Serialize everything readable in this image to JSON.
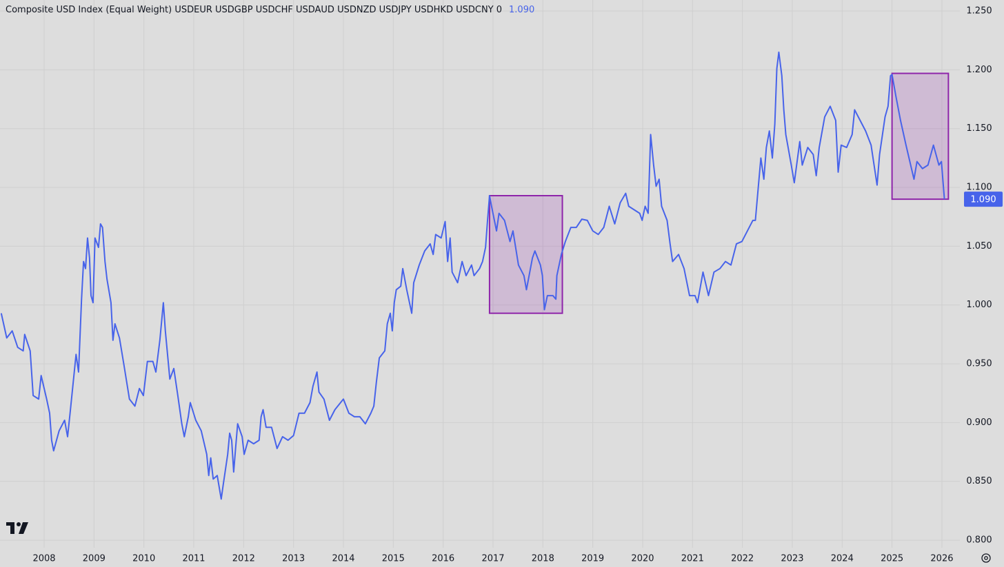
{
  "chart_data": {
    "type": "line",
    "title": "Composite USD Index (Equal Weight) USDEUR USDGBP USDCHF USDAUD USDNZD USDJPY USDHKD USDCNY 0",
    "color": "#4763ea",
    "grid": true,
    "xlim": [
      2007.115,
      2026.36
    ],
    "ylim": [
      0.7936,
      1.2594
    ],
    "xticks": [
      2008,
      2009,
      2010,
      2011,
      2012,
      2013,
      2014,
      2015,
      2016,
      2017,
      2018,
      2019,
      2020,
      2021,
      2022,
      2023,
      2024,
      2025,
      2026
    ],
    "yticks": [
      {
        "value": 0.8,
        "label": "0.800"
      },
      {
        "value": 0.85,
        "label": "0.850"
      },
      {
        "value": 0.9,
        "label": "0.900"
      },
      {
        "value": 0.95,
        "label": "0.950"
      },
      {
        "value": 1.0,
        "label": "1.000"
      },
      {
        "value": 1.05,
        "label": "1.050"
      },
      {
        "value": 1.1,
        "label": "1.100"
      },
      {
        "value": 1.15,
        "label": "1.150"
      },
      {
        "value": 1.2,
        "label": "1.200"
      },
      {
        "value": 1.25,
        "label": "1.250"
      }
    ],
    "current_value": {
      "value": 1.09,
      "label": "1.090"
    },
    "highlight_color": "#8e24aa",
    "highlights": [
      {
        "xlim": [
          2016.93,
          2018.39
        ],
        "ylim": [
          0.993,
          1.093
        ]
      },
      {
        "xlim": [
          2025.0,
          2026.13
        ],
        "ylim": [
          1.09,
          1.197
        ]
      }
    ],
    "x": [
      2007.14,
      2007.25,
      2007.36,
      2007.47,
      2007.58,
      2007.61,
      2007.72,
      2007.78,
      2007.89,
      2007.94,
      2008.05,
      2008.11,
      2008.15,
      2008.19,
      2008.3,
      2008.41,
      2008.47,
      2008.52,
      2008.64,
      2008.69,
      2008.75,
      2008.79,
      2008.83,
      2008.87,
      2008.91,
      2008.94,
      2008.98,
      2009.02,
      2009.09,
      2009.13,
      2009.17,
      2009.22,
      2009.26,
      2009.34,
      2009.38,
      2009.42,
      2009.51,
      2009.6,
      2009.71,
      2009.82,
      2009.91,
      2009.99,
      2010.07,
      2010.18,
      2010.24,
      2010.32,
      2010.39,
      2010.43,
      2010.52,
      2010.6,
      2010.68,
      2010.76,
      2010.81,
      2010.89,
      2010.93,
      2011.04,
      2011.15,
      2011.26,
      2011.3,
      2011.34,
      2011.39,
      2011.47,
      2011.55,
      2011.59,
      2011.68,
      2011.72,
      2011.76,
      2011.8,
      2011.84,
      2011.88,
      2011.97,
      2012.01,
      2012.09,
      2012.2,
      2012.31,
      2012.35,
      2012.39,
      2012.45,
      2012.56,
      2012.67,
      2012.78,
      2012.89,
      2013.0,
      2013.11,
      2013.22,
      2013.33,
      2013.39,
      2013.47,
      2013.51,
      2013.61,
      2013.72,
      2013.83,
      2014.0,
      2014.11,
      2014.22,
      2014.33,
      2014.44,
      2014.55,
      2014.61,
      2014.66,
      2014.72,
      2014.83,
      2014.88,
      2014.94,
      2014.98,
      2015.02,
      2015.06,
      2015.15,
      2015.19,
      2015.27,
      2015.37,
      2015.41,
      2015.52,
      2015.63,
      2015.74,
      2015.8,
      2015.85,
      2015.96,
      2016.04,
      2016.09,
      2016.14,
      2016.18,
      2016.29,
      2016.38,
      2016.46,
      2016.57,
      2016.62,
      2016.73,
      2016.79,
      2016.85,
      2016.89,
      2016.93,
      2016.97,
      2017.07,
      2017.12,
      2017.23,
      2017.34,
      2017.4,
      2017.51,
      2017.62,
      2017.67,
      2017.79,
      2017.84,
      2017.95,
      2017.99,
      2018.03,
      2018.09,
      2018.2,
      2018.26,
      2018.28,
      2018.37,
      2018.45,
      2018.56,
      2018.67,
      2018.78,
      2018.89,
      2019.0,
      2019.11,
      2019.22,
      2019.33,
      2019.44,
      2019.55,
      2019.66,
      2019.72,
      2019.83,
      2019.94,
      2019.99,
      2020.05,
      2020.11,
      2020.16,
      2020.22,
      2020.27,
      2020.33,
      2020.38,
      2020.49,
      2020.55,
      2020.6,
      2020.72,
      2020.83,
      2020.94,
      2021.05,
      2021.1,
      2021.21,
      2021.32,
      2021.43,
      2021.55,
      2021.66,
      2021.77,
      2021.88,
      2021.99,
      2022.1,
      2022.21,
      2022.26,
      2022.32,
      2022.37,
      2022.43,
      2022.48,
      2022.54,
      2022.6,
      2022.65,
      2022.69,
      2022.73,
      2022.79,
      2022.83,
      2022.87,
      2022.98,
      2023.04,
      2023.15,
      2023.2,
      2023.31,
      2023.42,
      2023.48,
      2023.54,
      2023.65,
      2023.76,
      2023.87,
      2023.92,
      2023.98,
      2024.09,
      2024.2,
      2024.25,
      2024.36,
      2024.47,
      2024.58,
      2024.64,
      2024.7,
      2024.75,
      2024.86,
      2024.92,
      2024.97,
      2025.0,
      2025.08,
      2025.17,
      2025.28,
      2025.39,
      2025.44,
      2025.5,
      2025.61,
      2025.72,
      2025.83,
      2025.94,
      2025.99,
      2026.05
    ],
    "values": [
      0.993,
      0.972,
      0.978,
      0.964,
      0.961,
      0.975,
      0.961,
      0.923,
      0.92,
      0.94,
      0.92,
      0.908,
      0.885,
      0.876,
      0.893,
      0.902,
      0.888,
      0.908,
      0.958,
      0.943,
      1.005,
      1.037,
      1.031,
      1.057,
      1.04,
      1.008,
      1.002,
      1.057,
      1.049,
      1.069,
      1.066,
      1.037,
      1.022,
      1.002,
      0.97,
      0.984,
      0.972,
      0.949,
      0.92,
      0.914,
      0.929,
      0.923,
      0.952,
      0.952,
      0.943,
      0.97,
      1.002,
      0.978,
      0.937,
      0.946,
      0.923,
      0.899,
      0.888,
      0.905,
      0.917,
      0.902,
      0.893,
      0.873,
      0.855,
      0.87,
      0.852,
      0.855,
      0.835,
      0.847,
      0.873,
      0.891,
      0.885,
      0.858,
      0.879,
      0.899,
      0.888,
      0.873,
      0.885,
      0.882,
      0.885,
      0.905,
      0.911,
      0.896,
      0.896,
      0.878,
      0.888,
      0.885,
      0.889,
      0.908,
      0.908,
      0.917,
      0.931,
      0.943,
      0.926,
      0.92,
      0.902,
      0.911,
      0.92,
      0.908,
      0.905,
      0.905,
      0.899,
      0.908,
      0.914,
      0.934,
      0.955,
      0.961,
      0.984,
      0.993,
      0.978,
      1.002,
      1.013,
      1.016,
      1.031,
      1.013,
      0.993,
      1.019,
      1.034,
      1.046,
      1.052,
      1.043,
      1.06,
      1.057,
      1.071,
      1.037,
      1.057,
      1.028,
      1.019,
      1.037,
      1.025,
      1.034,
      1.025,
      1.031,
      1.037,
      1.049,
      1.072,
      1.093,
      1.084,
      1.063,
      1.078,
      1.072,
      1.054,
      1.063,
      1.034,
      1.025,
      1.013,
      1.04,
      1.046,
      1.034,
      1.025,
      0.996,
      1.008,
      1.008,
      1.005,
      1.025,
      1.043,
      1.054,
      1.066,
      1.066,
      1.073,
      1.072,
      1.063,
      1.06,
      1.066,
      1.084,
      1.069,
      1.087,
      1.095,
      1.084,
      1.081,
      1.078,
      1.072,
      1.084,
      1.078,
      1.145,
      1.119,
      1.101,
      1.107,
      1.084,
      1.072,
      1.052,
      1.037,
      1.043,
      1.031,
      1.008,
      1.008,
      1.002,
      1.028,
      1.008,
      1.028,
      1.031,
      1.037,
      1.034,
      1.052,
      1.054,
      1.063,
      1.072,
      1.072,
      1.101,
      1.125,
      1.107,
      1.134,
      1.148,
      1.125,
      1.154,
      1.201,
      1.215,
      1.195,
      1.166,
      1.145,
      1.119,
      1.104,
      1.139,
      1.119,
      1.134,
      1.128,
      1.11,
      1.134,
      1.16,
      1.169,
      1.157,
      1.113,
      1.136,
      1.134,
      1.145,
      1.166,
      1.157,
      1.148,
      1.136,
      1.119,
      1.102,
      1.128,
      1.16,
      1.169,
      1.195,
      1.196,
      1.177,
      1.157,
      1.136,
      1.116,
      1.107,
      1.122,
      1.116,
      1.119,
      1.136,
      1.119,
      1.122,
      1.09
    ]
  }
}
